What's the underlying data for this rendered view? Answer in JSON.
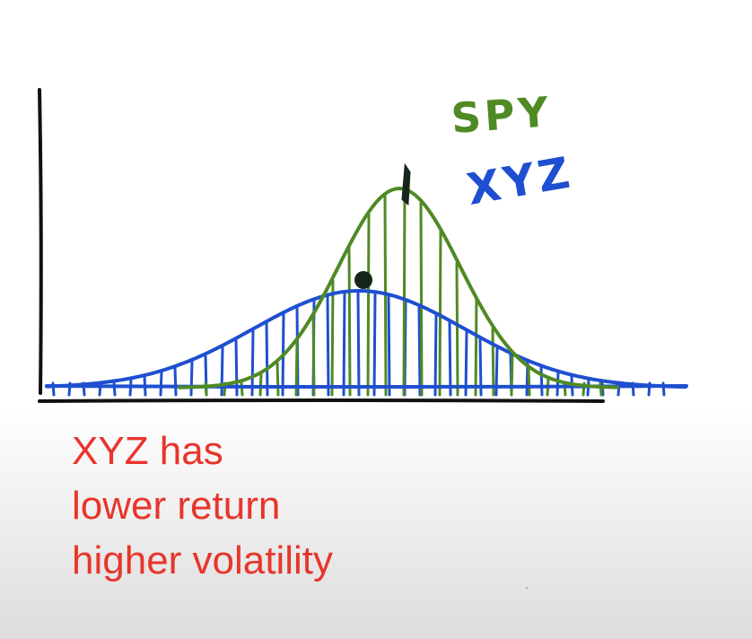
{
  "legend": {
    "spy_label": "SPY",
    "xyz_label": "XYZ",
    "spy_color": "#4f8a24",
    "xyz_color": "#1f4fd0"
  },
  "axis_color": "#111111",
  "marker_color": "#16261a",
  "caption": {
    "line1": "XYZ has",
    "line2": "lower return",
    "line3": "higher volatility",
    "color": "#e8352b"
  },
  "distributions": [
    {
      "name": "SPY",
      "mean": 0.6,
      "relative_height": 1.0,
      "spread": "narrow"
    },
    {
      "name": "XYZ",
      "mean": 0.5,
      "relative_height": 0.47,
      "spread": "wide"
    }
  ]
}
